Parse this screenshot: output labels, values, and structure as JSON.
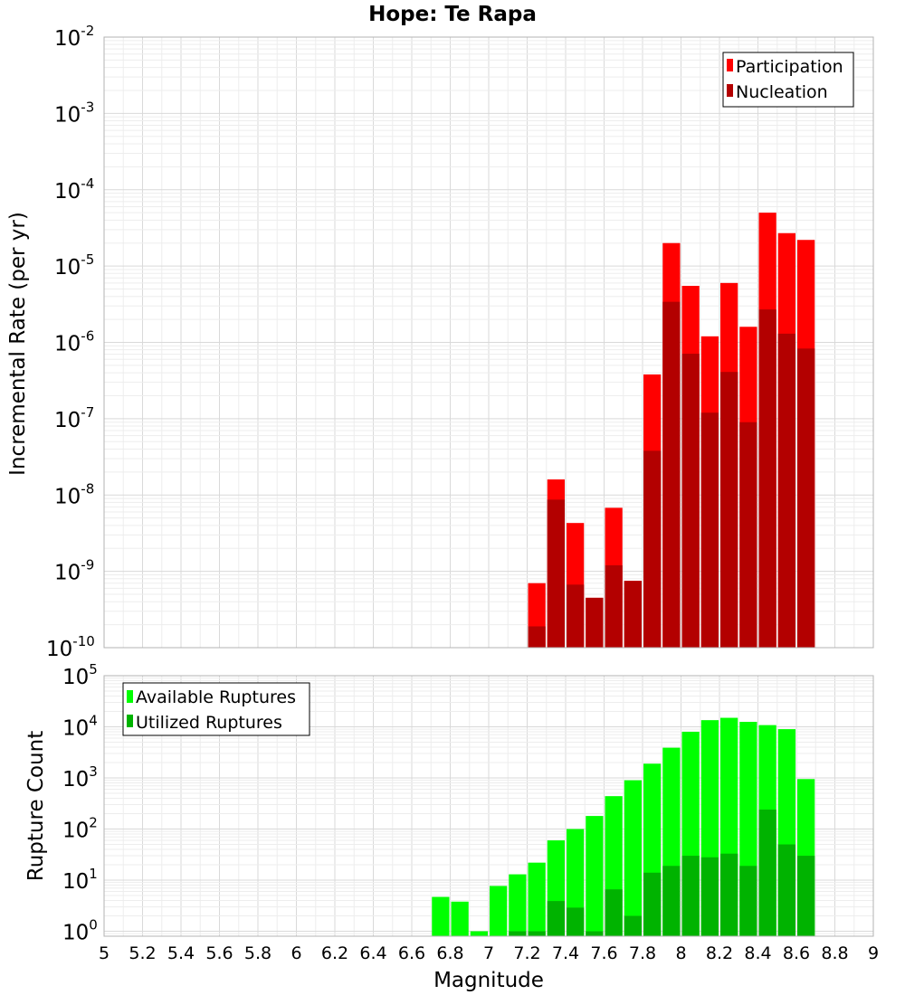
{
  "chart_data": [
    {
      "type": "bar",
      "title": "Hope: Te Rapa",
      "xlabel": "",
      "ylabel": "Incremental Rate (per yr)",
      "xlim": [
        5,
        9
      ],
      "ylim": [
        1e-10,
        0.01
      ],
      "y_scale": "log",
      "y_ticks": [
        {
          "base": "10",
          "exp": "-10"
        },
        {
          "base": "10",
          "exp": "-9"
        },
        {
          "base": "10",
          "exp": "-8"
        },
        {
          "base": "10",
          "exp": "-7"
        },
        {
          "base": "10",
          "exp": "-6"
        },
        {
          "base": "10",
          "exp": "-5"
        },
        {
          "base": "10",
          "exp": "-4"
        },
        {
          "base": "10",
          "exp": "-3"
        },
        {
          "base": "10",
          "exp": "-2"
        }
      ],
      "grid": true,
      "legend_position": "top-right",
      "bin_width": 0.1,
      "x": [
        7.25,
        7.35,
        7.45,
        7.55,
        7.65,
        7.75,
        7.85,
        7.95,
        8.05,
        8.15,
        8.25,
        8.35,
        8.45,
        8.55,
        8.65
      ],
      "series": [
        {
          "name": "Participation",
          "color": "#ff0000",
          "values": [
            7e-10,
            1.6e-08,
            4.3e-09,
            4.5e-10,
            6.8e-09,
            7.5e-10,
            3.8e-07,
            2e-05,
            5.5e-06,
            1.2e-06,
            6e-06,
            1.6e-06,
            5e-05,
            2.7e-05,
            2.2e-05
          ]
        },
        {
          "name": "Nucleation",
          "color": "#b30000",
          "values": [
            1.9e-10,
            8.7e-09,
            6.7e-10,
            4.5e-10,
            1.2e-09,
            7.5e-10,
            3.8e-08,
            3.4e-06,
            7.1e-07,
            1.2e-07,
            4.1e-07,
            9e-08,
            2.7e-06,
            1.3e-06,
            8.3e-07
          ]
        }
      ]
    },
    {
      "type": "bar",
      "title": "",
      "xlabel": "Magnitude",
      "ylabel": "Rupture Count",
      "xlim": [
        5,
        9
      ],
      "ylim": [
        0.8,
        100000
      ],
      "y_scale": "log",
      "y_ticks": [
        {
          "base": "10",
          "exp": "0"
        },
        {
          "base": "10",
          "exp": "1"
        },
        {
          "base": "10",
          "exp": "2"
        },
        {
          "base": "10",
          "exp": "3"
        },
        {
          "base": "10",
          "exp": "4"
        },
        {
          "base": "10",
          "exp": "5"
        }
      ],
      "x_ticks": [
        "5",
        "5.2",
        "5.4",
        "5.6",
        "5.8",
        "6",
        "6.2",
        "6.4",
        "6.6",
        "6.8",
        "7",
        "7.2",
        "7.4",
        "7.6",
        "7.8",
        "8",
        "8.2",
        "8.4",
        "8.6",
        "8.8",
        "9"
      ],
      "grid": true,
      "legend_position": "top-left",
      "bin_width": 0.1,
      "x": [
        6.75,
        6.85,
        6.95,
        7.05,
        7.15,
        7.25,
        7.35,
        7.45,
        7.55,
        7.65,
        7.75,
        7.85,
        7.95,
        8.05,
        8.15,
        8.25,
        8.35,
        8.45,
        8.55,
        8.65
      ],
      "series": [
        {
          "name": "Available Ruptures",
          "color": "#00ff00",
          "values": [
            4.7,
            3.8,
            1,
            7.7,
            13,
            22,
            60,
            100,
            180,
            440,
            900,
            1900,
            3900,
            8000,
            13500,
            15000,
            12500,
            10800,
            9000,
            950
          ]
        },
        {
          "name": "Utilized Ruptures",
          "color": "#00b300",
          "values": [
            0,
            0,
            0,
            0,
            1,
            1,
            3.9,
            2.9,
            1,
            6.6,
            2,
            14,
            19,
            30,
            28,
            33,
            19,
            240,
            50,
            30
          ]
        }
      ]
    }
  ]
}
